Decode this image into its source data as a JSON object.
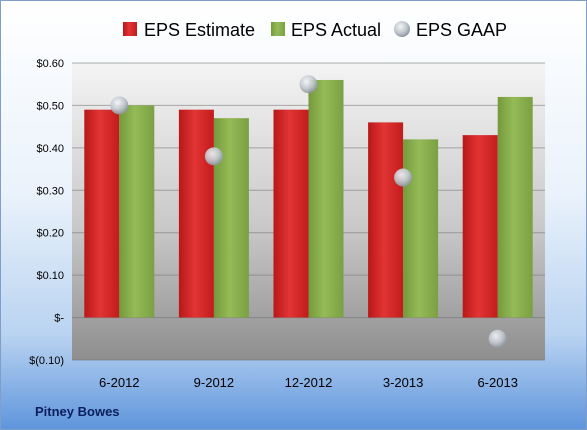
{
  "chart_data": {
    "type": "bar",
    "categories": [
      "6-2012",
      "9-2012",
      "12-2012",
      "3-2013",
      "6-2013"
    ],
    "series": [
      {
        "name": "EPS Estimate",
        "kind": "bar",
        "color": "#d42020",
        "values": [
          0.49,
          0.49,
          0.49,
          0.46,
          0.43
        ]
      },
      {
        "name": "EPS Actual",
        "kind": "bar",
        "color": "#86ad4a",
        "values": [
          0.5,
          0.47,
          0.56,
          0.42,
          0.52
        ]
      },
      {
        "name": "EPS GAAP",
        "kind": "scatter",
        "color": "#c7cdd6",
        "values": [
          0.5,
          0.38,
          0.55,
          0.33,
          -0.05
        ]
      }
    ],
    "yticks": [
      {
        "value": 0.6,
        "label": "$0.60"
      },
      {
        "value": 0.5,
        "label": "$0.50"
      },
      {
        "value": 0.4,
        "label": "$0.40"
      },
      {
        "value": 0.3,
        "label": "$0.30"
      },
      {
        "value": 0.2,
        "label": "$0.20"
      },
      {
        "value": 0.1,
        "label": "$0.10"
      },
      {
        "value": 0.0,
        "label": "$-"
      },
      {
        "value": -0.1,
        "label": "$(0.10)"
      }
    ],
    "ylim": [
      -0.1,
      0.6
    ],
    "grid": true,
    "legend_position": "top",
    "footer": "Pitney Bowes"
  }
}
